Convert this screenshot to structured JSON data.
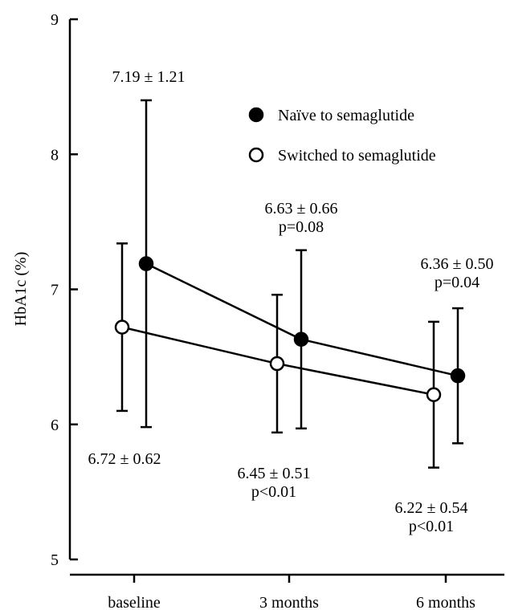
{
  "chart_data": {
    "type": "line",
    "categories": [
      "baseline",
      "3 months",
      "6 months"
    ],
    "ylabel": "HbA1c (%)",
    "ylim": [
      5,
      9
    ],
    "yticks": [
      "5",
      "6",
      "7",
      "8",
      "9"
    ],
    "grid": false,
    "legend_position": "top-right",
    "series": [
      {
        "name": "Naïve to semaglutide",
        "marker": "filled-circle",
        "color": "#000000",
        "values": [
          7.19,
          6.63,
          6.36
        ],
        "errors": [
          1.21,
          0.66,
          0.5
        ],
        "labels": [
          [
            "7.19 ± 1.21"
          ],
          [
            "6.63 ± 0.66",
            "p=0.08"
          ],
          [
            "6.36 ± 0.50",
            "p=0.04"
          ]
        ]
      },
      {
        "name": "Switched to semaglutide",
        "marker": "open-circle",
        "color": "#000000",
        "values": [
          6.72,
          6.45,
          6.22
        ],
        "errors": [
          0.62,
          0.51,
          0.54
        ],
        "labels": [
          [
            "6.72 ± 0.62"
          ],
          [
            "6.45 ± 0.51",
            "p<0.01"
          ],
          [
            "6.22 ± 0.54",
            "p<0.01"
          ]
        ]
      }
    ]
  }
}
